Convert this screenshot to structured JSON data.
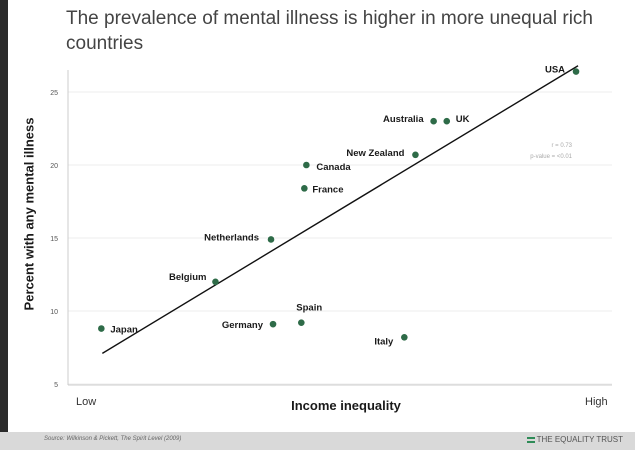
{
  "title": "The prevalence of mental illness is higher in more unequal rich countries",
  "source": "Source: Wilkinson & Pickett, The Spirit Level (2009)",
  "brand": "THE EQUALITY TRUST",
  "chart_data": {
    "type": "scatter",
    "title": "The prevalence of mental illness is higher in more unequal rich countries",
    "xlabel": "Income inequality",
    "ylabel": "Percent with any mental illness",
    "x_tick_labels": [
      "Low",
      "High"
    ],
    "y_ticks": [
      5,
      10,
      15,
      20,
      25
    ],
    "ylim": [
      5,
      27
    ],
    "grid": true,
    "point_color": "#2e6b48",
    "line_color": "#111111",
    "stats": [
      "r = 0.73",
      "p-value = <0.01"
    ],
    "trend_line": {
      "x": [
        3.4,
        50.5
      ],
      "y": [
        7.1,
        26.8
      ]
    },
    "points": [
      {
        "label": "Japan",
        "x": 3.3,
        "y": 8.8
      },
      {
        "label": "Germany",
        "x": 20.3,
        "y": 9.1
      },
      {
        "label": "Spain",
        "x": 23.1,
        "y": 9.2
      },
      {
        "label": "Belgium",
        "x": 14.6,
        "y": 12.0
      },
      {
        "label": "Netherlands",
        "x": 20.1,
        "y": 14.9
      },
      {
        "label": "France",
        "x": 23.4,
        "y": 18.4
      },
      {
        "label": "Canada",
        "x": 23.6,
        "y": 20.0
      },
      {
        "label": "New Zealand",
        "x": 34.4,
        "y": 20.7
      },
      {
        "label": "Australia",
        "x": 36.2,
        "y": 23.0
      },
      {
        "label": "UK",
        "x": 37.5,
        "y": 23.0
      },
      {
        "label": "Italy",
        "x": 33.3,
        "y": 8.2
      },
      {
        "label": "USA",
        "x": 50.3,
        "y": 26.4
      }
    ]
  }
}
